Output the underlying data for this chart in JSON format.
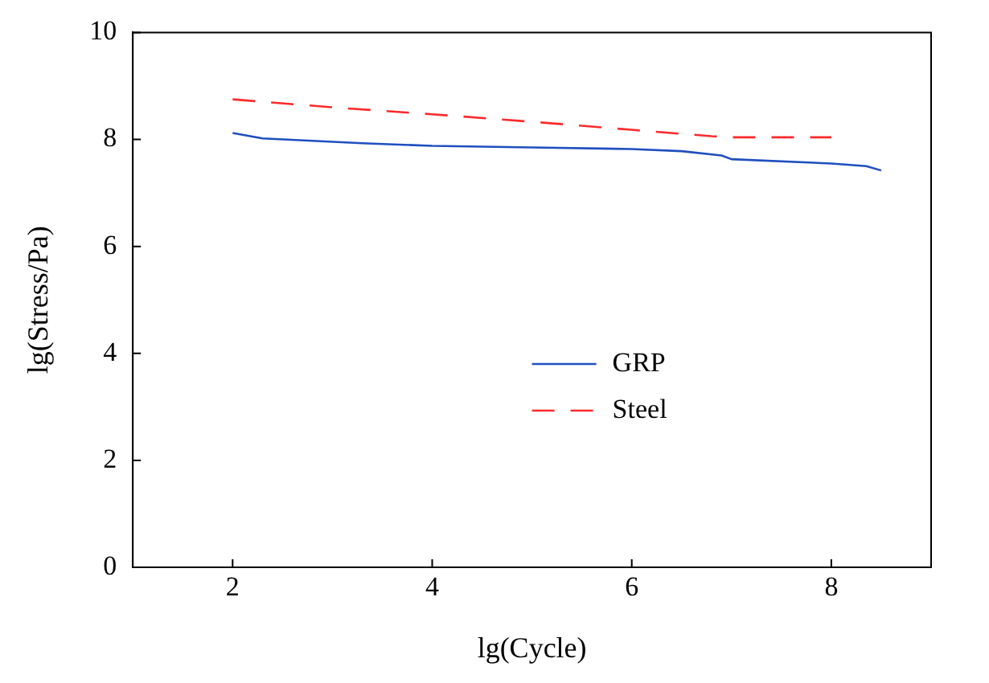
{
  "chart_data": {
    "type": "line",
    "xlabel": "lg(Cycle)",
    "ylabel": "lg(Stress/Pa)",
    "xlim": [
      1,
      9
    ],
    "xticks": [
      2,
      4,
      6,
      8
    ],
    "ylim": [
      0,
      10
    ],
    "yticks": [
      0,
      2,
      4,
      6,
      8,
      10
    ],
    "grid": false,
    "legend": "center",
    "marker": "none",
    "series": [
      {
        "name": "GRP",
        "color": "#1f4fbf",
        "line_style": "solid",
        "x": [
          2.0,
          2.3,
          3.3,
          4,
          5,
          6,
          6.5,
          6.9,
          7.0,
          8,
          8.35,
          8.5
        ],
        "values": [
          8.12,
          8.02,
          7.93,
          7.88,
          7.85,
          7.82,
          7.78,
          7.7,
          7.63,
          7.55,
          7.5,
          7.42
        ]
      },
      {
        "name": "Steel",
        "color": "#ff2a2a",
        "line_style": "dashed",
        "x": [
          2,
          3,
          4,
          5,
          6,
          6.8,
          7,
          8
        ],
        "values": [
          8.75,
          8.6,
          8.47,
          8.33,
          8.18,
          8.06,
          8.04,
          8.04
        ]
      }
    ]
  }
}
